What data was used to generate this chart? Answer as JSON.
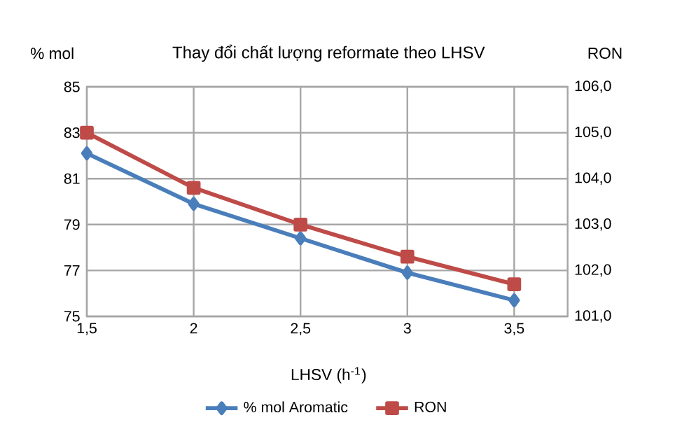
{
  "chart_data": {
    "type": "line",
    "title": "Thay đổi chất lượng reformate theo LHSV",
    "xlabel": "LHSV (h$^{-1}$)",
    "ylabel": "% mol",
    "y2label": "RON",
    "x": [
      1.5,
      2,
      2.5,
      3,
      3.5
    ],
    "xlim": [
      1.5,
      3.75
    ],
    "xticks": [
      {
        "value": 1.5,
        "label": "1,5"
      },
      2,
      {
        "value": 2.5,
        "label": "2,5"
      },
      3,
      {
        "value": 3.5,
        "label": "3,5"
      }
    ],
    "ylim": [
      75,
      85
    ],
    "yticks": [
      75,
      77,
      79,
      81,
      83,
      85
    ],
    "y2lim": [
      101,
      106
    ],
    "y2ticks": [
      {
        "value": 101,
        "label": "101,0"
      },
      {
        "value": 102,
        "label": "102,0"
      },
      {
        "value": 103,
        "label": "103,0"
      },
      {
        "value": 104,
        "label": "104,0"
      },
      {
        "value": 105,
        "label": "105,0"
      },
      {
        "value": 106,
        "label": "106,0"
      }
    ],
    "series": [
      {
        "name": "% mol Aromatic",
        "color": "#4a7ebb",
        "marker": "diamond",
        "values": [
          82.1,
          79.9,
          78.4,
          76.9,
          75.7
        ]
      },
      {
        "name": "RON",
        "color": "#be4b48",
        "marker": "square",
        "axis": "y2",
        "values": [
          105.0,
          103.8,
          103.0,
          102.3,
          101.7
        ]
      }
    ],
    "grid": true,
    "legend": "bottom",
    "line_style": "solid"
  }
}
